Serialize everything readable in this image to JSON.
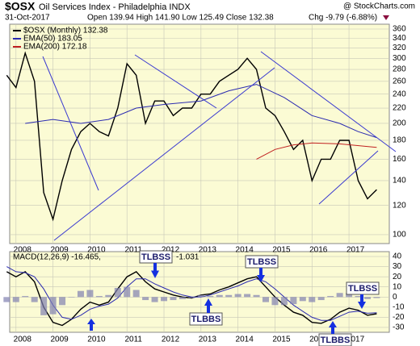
{
  "header": {
    "symbol": "$OSX",
    "name": "Oil Services Index - Philadelphia INDX",
    "source": "@ StockCharts.com",
    "date": "31-Oct-2017",
    "quote": "Open 139.94 High 141.90 Low 125.49 Close 132.38",
    "change": "Chg -9.79 (-6.88%)"
  },
  "chart_data": [
    {
      "type": "line",
      "log": true,
      "grid": true,
      "x": [
        2007.75,
        2008,
        2008.25,
        2008.5,
        2008.75,
        2009,
        2009.25,
        2009.5,
        2009.75,
        2010,
        2010.25,
        2010.5,
        2010.75,
        2011,
        2011.25,
        2011.5,
        2011.75,
        2012,
        2012.25,
        2012.5,
        2012.75,
        2013,
        2013.25,
        2013.5,
        2013.75,
        2014,
        2014.25,
        2014.5,
        2014.75,
        2015,
        2015.25,
        2015.5,
        2015.75,
        2016,
        2016.25,
        2016.5,
        2016.75,
        2017,
        2017.25,
        2017.5,
        2017.75
      ],
      "series": [
        {
          "name": "$OSX (Monthly) 132.38",
          "color": "#000000",
          "values": [
            270,
            250,
            310,
            260,
            130,
            110,
            140,
            170,
            190,
            200,
            190,
            185,
            220,
            290,
            270,
            200,
            230,
            230,
            210,
            220,
            220,
            240,
            240,
            260,
            270,
            280,
            300,
            280,
            220,
            210,
            190,
            170,
            180,
            140,
            160,
            160,
            180,
            180,
            140,
            125,
            132.38
          ]
        },
        {
          "name": "EMA(50) 183.05",
          "color": "#2a2ab0",
          "x": [
            2008.25,
            2009,
            2009.75,
            2010.5,
            2011.25,
            2012,
            2013,
            2013.75,
            2014.5,
            2015.25,
            2016,
            2016.75,
            2017.25,
            2017.75
          ],
          "values": [
            200,
            205,
            200,
            205,
            220,
            225,
            230,
            245,
            255,
            235,
            210,
            200,
            190,
            183.05
          ]
        },
        {
          "name": "EMA(200) 172.18",
          "color": "#c02020",
          "x": [
            2014.5,
            2015,
            2015.5,
            2016,
            2016.75,
            2017.75
          ],
          "values": [
            160,
            170,
            175,
            177,
            176,
            172.18
          ]
        }
      ],
      "xlim": [
        2007.83,
        2018.09
      ],
      "xticks": [
        2008,
        2009,
        2010,
        2011,
        2012,
        2013,
        2014,
        2015,
        2016,
        2017
      ],
      "ylim": [
        94.6,
        371
      ],
      "yticks": [
        100,
        120,
        140,
        160,
        180,
        200,
        220,
        240,
        260,
        280,
        300,
        320,
        340,
        360
      ]
    },
    {
      "type": "line",
      "grid": true,
      "x": [
        2007.75,
        2008,
        2008.25,
        2008.5,
        2008.75,
        2009,
        2009.25,
        2009.5,
        2009.75,
        2010,
        2010.25,
        2010.5,
        2010.75,
        2011,
        2011.25,
        2011.5,
        2011.75,
        2012,
        2012.25,
        2012.5,
        2012.75,
        2013,
        2013.25,
        2013.5,
        2013.75,
        2014,
        2014.25,
        2014.5,
        2014.75,
        2015,
        2015.25,
        2015.5,
        2015.75,
        2016,
        2016.25,
        2016.5,
        2016.75,
        2017,
        2017.25,
        2017.5,
        2017.75
      ],
      "series": [
        {
          "name": "MACD(12,26,9) -16.465,",
          "color": "#000000",
          "values": [
            25,
            20,
            25,
            15,
            -10,
            -25,
            -28,
            -22,
            -12,
            -5,
            -8,
            -5,
            8,
            20,
            25,
            15,
            8,
            5,
            2,
            0,
            -1,
            2,
            3,
            7,
            10,
            14,
            18,
            20,
            10,
            0,
            -8,
            -15,
            -18,
            -25,
            -26,
            -22,
            -15,
            -11,
            -13,
            -18,
            -16.465
          ]
        },
        {
          "color": "#2a2ab0",
          "values": [
            30,
            25,
            24,
            20,
            8,
            -8,
            -20,
            -22,
            -18,
            -12,
            -9,
            -7,
            -1,
            10,
            18,
            18,
            13,
            9,
            5,
            2,
            0,
            0,
            2,
            5,
            8,
            11,
            15,
            18,
            15,
            8,
            0,
            -8,
            -14,
            -20,
            -23,
            -23,
            -19,
            -15,
            -14,
            -16,
            -15.434
          ]
        },
        {
          "name": "-1.031",
          "type": "histogram",
          "color": "#8080b0",
          "values": [
            -5,
            -5,
            1,
            -5,
            -18,
            -17,
            -8,
            0,
            6,
            7,
            1,
            2,
            9,
            10,
            7,
            -3,
            -5,
            -4,
            -3,
            -2,
            -1,
            2,
            1,
            2,
            2,
            3,
            3,
            2,
            -5,
            -8,
            -8,
            -7,
            -4,
            -5,
            -3,
            1,
            4,
            4,
            1,
            -2,
            -1.031
          ]
        }
      ],
      "annotations": [
        "TLBSS",
        "TLBSS",
        "TLBSS",
        "TLBBS",
        "TLBBS"
      ],
      "xlim": [
        2007.83,
        2018.09
      ],
      "xticks": [
        2008,
        2009,
        2010,
        2011,
        2012,
        2013,
        2014,
        2015,
        2016,
        2017
      ],
      "ylim": [
        -34.8,
        44.8
      ],
      "yticks": [
        -30,
        -20,
        -10,
        0,
        10,
        20,
        30,
        40
      ]
    }
  ]
}
